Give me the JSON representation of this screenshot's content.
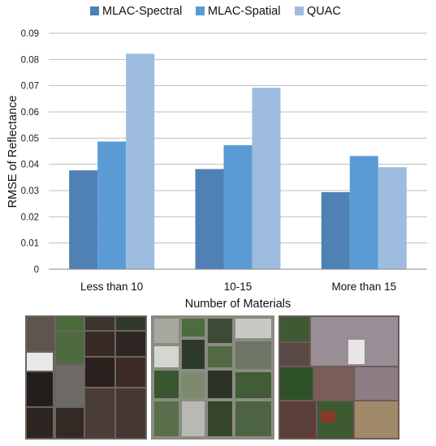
{
  "chart_data": {
    "type": "bar",
    "title": "",
    "xlabel": "Number of Materials",
    "ylabel": "RMSE of Reflectance",
    "ylim": [
      0,
      0.09
    ],
    "yticks": [
      "0",
      "0.01",
      "0.02",
      "0.03",
      "0.04",
      "0.05",
      "0.06",
      "0.07",
      "0.08",
      "0.09"
    ],
    "grid": true,
    "legend_position": "top",
    "categories": [
      "Less than 10",
      "10-15",
      "More than 15"
    ],
    "series": [
      {
        "name": "MLAC-Spectral",
        "color": "#4f81b4",
        "values": [
          0.0377,
          0.0382,
          0.0294
        ]
      },
      {
        "name": "MLAC-Spatial",
        "color": "#5b9bd5",
        "values": [
          0.0487,
          0.0473,
          0.0432
        ]
      },
      {
        "name": "QUAC",
        "color": "#9dbcdf",
        "values": [
          0.0822,
          0.0692,
          0.0389
        ]
      }
    ]
  },
  "images": [
    {
      "icon": "aerial-image-agricultural-fields"
    },
    {
      "icon": "aerial-image-mixed-farmland"
    },
    {
      "icon": "aerial-image-suburban-area"
    }
  ]
}
